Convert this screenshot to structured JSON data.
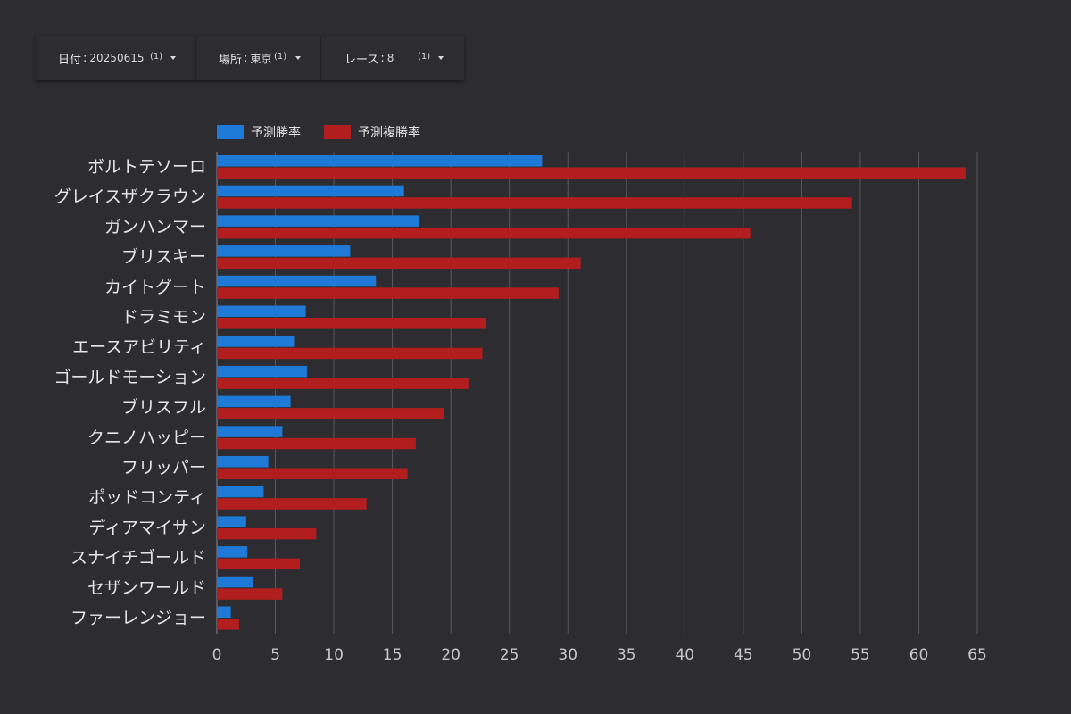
{
  "filters": [
    {
      "label": "日付",
      "value": "20250615",
      "count": "(1)",
      "icon": "dropdown-caret-icon"
    },
    {
      "label": "場所",
      "value": "東京",
      "count": "(1)",
      "icon": "dropdown-caret-icon"
    },
    {
      "label": "レース",
      "value": "8",
      "count": "(1)",
      "icon": "dropdown-caret-icon"
    }
  ],
  "colors": {
    "background": "#2d2c31",
    "series_win": "#1e7ad6",
    "series_place": "#b21e1e",
    "grid": "#5a595e",
    "text": "#e6e6e6",
    "tick": "#c8c8c8"
  },
  "chart_data": {
    "type": "bar",
    "orientation": "horizontal",
    "categories": [
      "ボルトテソーロ",
      "グレイスザクラウン",
      "ガンハンマー",
      "ブリスキー",
      "カイトグート",
      "ドラミモン",
      "エースアビリティ",
      "ゴールドモーション",
      "ブリスフル",
      "クニノハッピー",
      "フリッパー",
      "ポッドコンティ",
      "ディアマイサン",
      "スナイチゴールド",
      "セザンワールド",
      "ファーレンジョー"
    ],
    "series": [
      {
        "name": "予測勝率",
        "values": [
          27.8,
          16.0,
          17.3,
          11.4,
          13.6,
          7.6,
          6.6,
          7.7,
          6.3,
          5.6,
          4.4,
          4.0,
          2.5,
          2.6,
          3.1,
          1.2
        ]
      },
      {
        "name": "予測複勝率",
        "values": [
          64.0,
          54.3,
          45.6,
          31.1,
          29.2,
          23.0,
          22.7,
          21.5,
          19.4,
          17.0,
          16.3,
          12.8,
          8.5,
          7.1,
          5.6,
          1.9
        ]
      }
    ],
    "xlim": [
      0,
      65
    ],
    "xticks": [
      "0",
      "5",
      "10",
      "15",
      "20",
      "25",
      "30",
      "35",
      "40",
      "45",
      "50",
      "55",
      "60",
      "65"
    ],
    "grid": true,
    "legend": "top-left"
  }
}
